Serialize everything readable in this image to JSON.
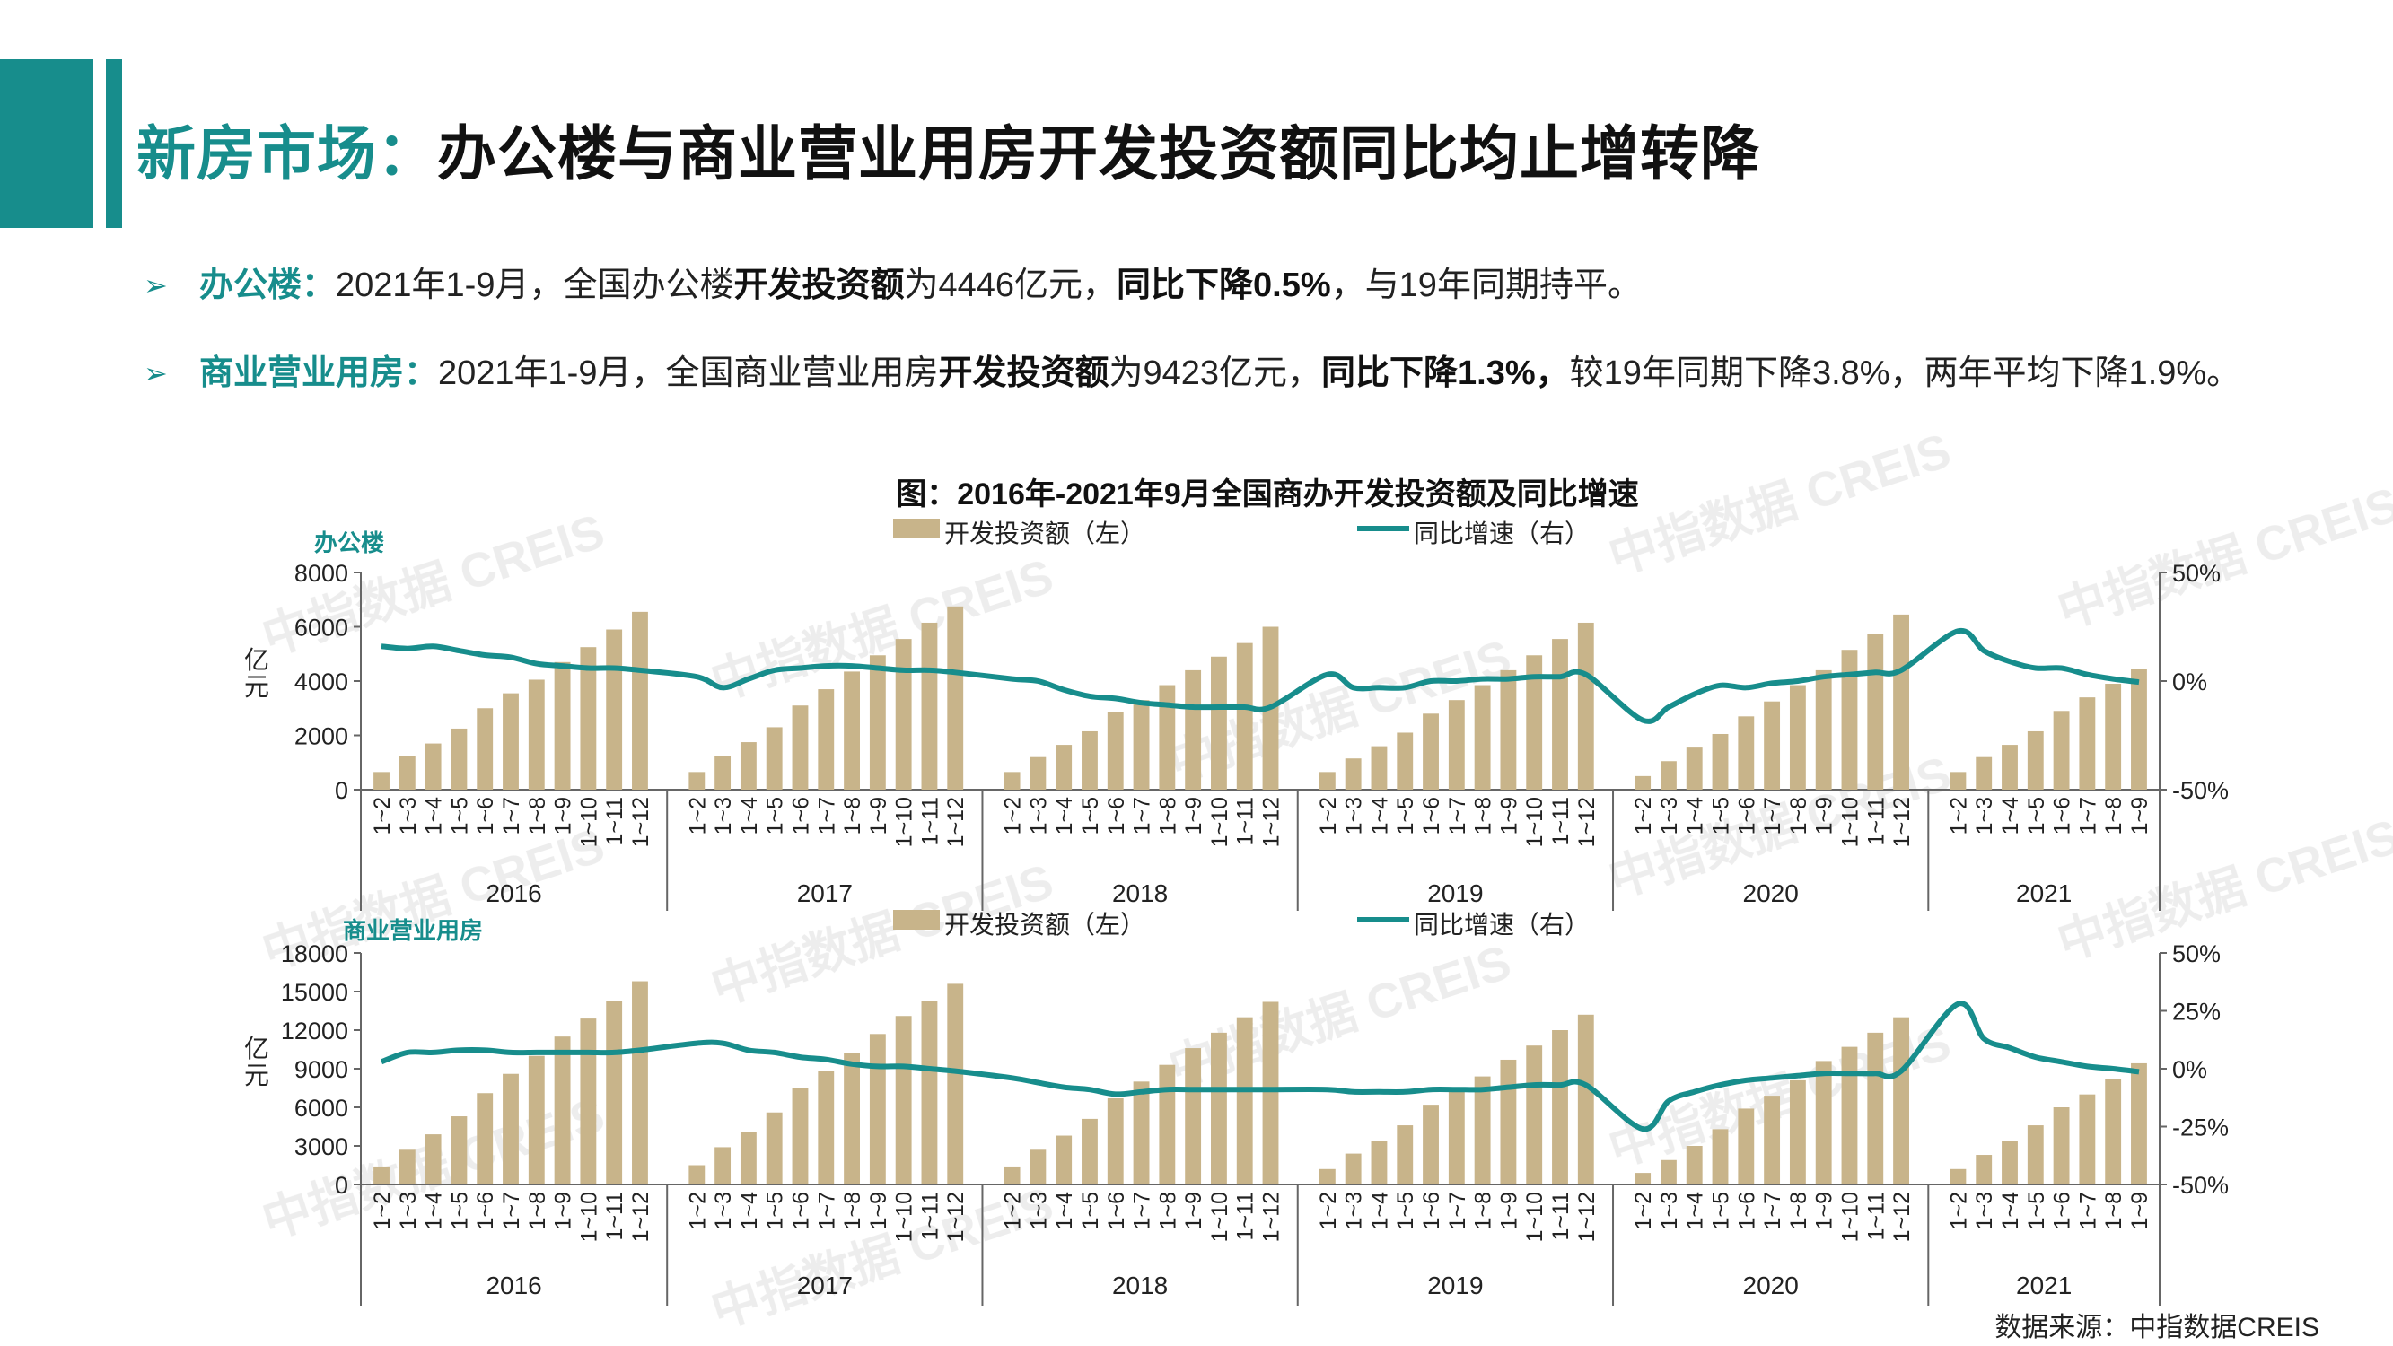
{
  "header": {
    "title_accent": "新房市场：",
    "title_main": "办公楼与商业营业用房开发投资额同比均止增转降"
  },
  "bullets": [
    {
      "label": "办公楼：",
      "t1": "2021年1-9月，全国办公楼",
      "b1": "开发投资额",
      "t2": "为4446亿元，",
      "b2": "同比下降0.5%",
      "t3": "，与19年同期持平。"
    },
    {
      "label": "商业营业用房：",
      "t1": "2021年1-9月，全国商业营业用房",
      "b1": "开发投资额",
      "t2": "为9423亿元，",
      "b2": "同比下降1.3%，",
      "t3": "较19年同期下降3.8%，两年平均下降1.9%。"
    }
  ],
  "watermark": {
    "text_cn": "中指数据",
    "text_en": "CREIS"
  },
  "source": "数据来源：中指数据CREIS",
  "chart_data": [
    {
      "type": "bar+line",
      "title": "图：2016年-2021年9月全国商办开发投资额及同比增速",
      "panel_label": "办公楼",
      "ylabel": "亿元",
      "ylim": [
        0,
        8000
      ],
      "yticks": [
        "8000",
        "6000",
        "4000",
        "2000",
        "0"
      ],
      "y2lim": [
        -50,
        50
      ],
      "y2ticks": [
        "50%",
        "0%",
        "-50%"
      ],
      "legend": {
        "bar": "开发投资额（左）",
        "line": "同比增速（右）"
      },
      "years": [
        "2016",
        "2017",
        "2018",
        "2019",
        "2020",
        "2021"
      ],
      "groups": [
        {
          "year": "2016",
          "months": [
            "1~2",
            "1~3",
            "1~4",
            "1~5",
            "1~6",
            "1~7",
            "1~8",
            "1~9",
            "1~10",
            "1~11",
            "1~12"
          ],
          "bars": [
            650,
            1250,
            1700,
            2250,
            3000,
            3550,
            4050,
            4700,
            5250,
            5900,
            6550
          ],
          "growth": [
            16,
            15,
            16,
            14,
            12,
            11,
            8,
            7,
            6,
            6,
            5
          ]
        },
        {
          "year": "2017",
          "months": [
            "1~2",
            "1~3",
            "1~4",
            "1~5",
            "1~6",
            "1~7",
            "1~8",
            "1~9",
            "1~10",
            "1~11",
            "1~12"
          ],
          "bars": [
            650,
            1250,
            1750,
            2300,
            3100,
            3700,
            4350,
            4950,
            5550,
            6150,
            6750
          ],
          "growth": [
            2,
            -3,
            1,
            5,
            6,
            7,
            7,
            6,
            5,
            5,
            4
          ]
        },
        {
          "year": "2018",
          "months": [
            "1~2",
            "1~3",
            "1~4",
            "1~5",
            "1~6",
            "1~7",
            "1~8",
            "1~9",
            "1~10",
            "1~11",
            "1~12"
          ],
          "bars": [
            650,
            1200,
            1650,
            2150,
            2850,
            3300,
            3850,
            4400,
            4900,
            5400,
            6000
          ],
          "growth": [
            1,
            0,
            -4,
            -7,
            -8,
            -10,
            -11,
            -12,
            -12,
            -12,
            -12
          ]
        },
        {
          "year": "2019",
          "months": [
            "1~2",
            "1~3",
            "1~4",
            "1~5",
            "1~6",
            "1~7",
            "1~8",
            "1~9",
            "1~10",
            "1~11",
            "1~12"
          ],
          "bars": [
            650,
            1150,
            1600,
            2100,
            2800,
            3300,
            3850,
            4400,
            4950,
            5550,
            6150
          ],
          "growth": [
            3,
            -3,
            -3,
            -3,
            0,
            0,
            1,
            1,
            2,
            2,
            3
          ]
        },
        {
          "year": "2020",
          "months": [
            "1~2",
            "1~3",
            "1~4",
            "1~5",
            "1~6",
            "1~7",
            "1~8",
            "1~9",
            "1~10",
            "1~11",
            "1~12"
          ],
          "bars": [
            500,
            1050,
            1550,
            2050,
            2700,
            3250,
            3850,
            4400,
            5150,
            5750,
            6450
          ],
          "growth": [
            -18,
            -12,
            -6,
            -2,
            -3,
            -1,
            0,
            2,
            3,
            4,
            5
          ]
        },
        {
          "year": "2021",
          "months": [
            "1~2",
            "1~3",
            "1~4",
            "1~5",
            "1~6",
            "1~7",
            "1~8",
            "1~9"
          ],
          "bars": [
            650,
            1200,
            1650,
            2150,
            2900,
            3400,
            3900,
            4446
          ],
          "growth": [
            23,
            14,
            9,
            6,
            6,
            3,
            1,
            -0.5
          ]
        }
      ]
    },
    {
      "type": "bar+line",
      "panel_label": "商业营业用房",
      "ylabel": "亿元",
      "ylim": [
        0,
        18000
      ],
      "yticks": [
        "18000",
        "15000",
        "12000",
        "9000",
        "6000",
        "3000",
        "0"
      ],
      "y2lim": [
        -50,
        50
      ],
      "y2ticks": [
        "50%",
        "25%",
        "0%",
        "-25%",
        "-50%"
      ],
      "legend": {
        "bar": "开发投资额（左）",
        "line": "同比增速（右）"
      },
      "years": [
        "2016",
        "2017",
        "2018",
        "2019",
        "2020",
        "2021"
      ],
      "groups": [
        {
          "year": "2016",
          "months": [
            "1~2",
            "1~3",
            "1~4",
            "1~5",
            "1~6",
            "1~7",
            "1~8",
            "1~9",
            "1~10",
            "1~11",
            "1~12"
          ],
          "bars": [
            1400,
            2700,
            3900,
            5300,
            7100,
            8600,
            10000,
            11500,
            12900,
            14300,
            15800
          ],
          "growth": [
            3,
            7,
            7,
            8,
            8,
            7,
            7,
            7,
            7,
            7,
            8
          ]
        },
        {
          "year": "2017",
          "months": [
            "1~2",
            "1~3",
            "1~4",
            "1~5",
            "1~6",
            "1~7",
            "1~8",
            "1~9",
            "1~10",
            "1~11",
            "1~12"
          ],
          "bars": [
            1500,
            2900,
            4100,
            5600,
            7500,
            8800,
            10200,
            11700,
            13100,
            14300,
            15600
          ],
          "growth": [
            11,
            11,
            8,
            7,
            5,
            4,
            2,
            1,
            1,
            0,
            -1
          ]
        },
        {
          "year": "2018",
          "months": [
            "1~2",
            "1~3",
            "1~4",
            "1~5",
            "1~6",
            "1~7",
            "1~8",
            "1~9",
            "1~10",
            "1~11",
            "1~12"
          ],
          "bars": [
            1400,
            2700,
            3800,
            5100,
            6700,
            8000,
            9300,
            10600,
            11800,
            13000,
            14200
          ],
          "growth": [
            -4,
            -6,
            -8,
            -9,
            -11,
            -10,
            -9,
            -9,
            -9,
            -9,
            -9
          ]
        },
        {
          "year": "2019",
          "months": [
            "1~2",
            "1~3",
            "1~4",
            "1~5",
            "1~6",
            "1~7",
            "1~8",
            "1~9",
            "1~10",
            "1~11",
            "1~12"
          ],
          "bars": [
            1200,
            2400,
            3400,
            4600,
            6200,
            7300,
            8400,
            9700,
            10800,
            12000,
            13200
          ],
          "growth": [
            -9,
            -10,
            -10,
            -10,
            -9,
            -9,
            -9,
            -8,
            -7,
            -7,
            -7
          ]
        },
        {
          "year": "2020",
          "months": [
            "1~2",
            "1~3",
            "1~4",
            "1~5",
            "1~6",
            "1~7",
            "1~8",
            "1~9",
            "1~10",
            "1~11",
            "1~12"
          ],
          "bars": [
            900,
            1900,
            3000,
            4300,
            5900,
            6900,
            8100,
            9600,
            10700,
            11800,
            13000
          ],
          "growth": [
            -26,
            -14,
            -10,
            -7,
            -5,
            -4,
            -3,
            -2,
            -2,
            -2,
            -1
          ]
        },
        {
          "year": "2021",
          "months": [
            "1~2",
            "1~3",
            "1~4",
            "1~5",
            "1~6",
            "1~7",
            "1~8",
            "1~9"
          ],
          "bars": [
            1200,
            2300,
            3400,
            4600,
            6000,
            7000,
            8200,
            9423
          ],
          "growth": [
            28,
            13,
            9,
            5,
            3,
            1,
            0,
            -1.3
          ]
        }
      ]
    }
  ]
}
